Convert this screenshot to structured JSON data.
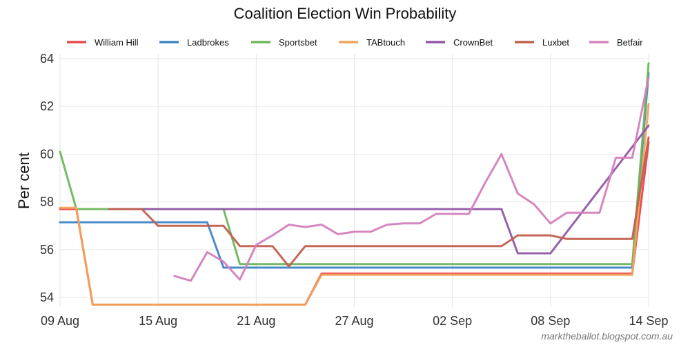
{
  "chart_data": {
    "type": "line",
    "title": "Coalition Election Win Probability",
    "xlabel": "",
    "ylabel": "Per cent",
    "ylim": [
      53.6,
      64.2
    ],
    "xlim": [
      "2016-08-09",
      "2016-09-14"
    ],
    "x_ticks": [
      {
        "date": "2016-08-09",
        "label": "09 Aug"
      },
      {
        "date": "2016-08-15",
        "label": "15 Aug"
      },
      {
        "date": "2016-08-21",
        "label": "21 Aug"
      },
      {
        "date": "2016-08-27",
        "label": "27 Aug"
      },
      {
        "date": "2016-09-02",
        "label": "02 Sep"
      },
      {
        "date": "2016-09-08",
        "label": "08 Sep"
      },
      {
        "date": "2016-09-14",
        "label": "14 Sep"
      }
    ],
    "y_ticks": [
      54,
      56,
      58,
      60,
      62,
      64
    ],
    "grid": true,
    "legend_position": "top",
    "footnote": "marktheballot.blogspot.com.au",
    "series": [
      {
        "name": "William Hill",
        "color": "#e8474c",
        "points": [
          [
            "2016-08-09",
            57.7
          ],
          [
            "2016-08-10",
            57.7
          ],
          [
            "2016-08-11",
            53.7
          ],
          [
            "2016-08-24",
            53.7
          ],
          [
            "2016-08-25",
            55.0
          ],
          [
            "2016-09-13",
            55.0
          ],
          [
            "2016-09-14",
            60.5
          ]
        ]
      },
      {
        "name": "Ladbrokes",
        "color": "#3d85c6",
        "points": [
          [
            "2016-08-09",
            57.15
          ],
          [
            "2016-08-18",
            57.15
          ],
          [
            "2016-08-19",
            55.25
          ],
          [
            "2016-09-13",
            55.25
          ],
          [
            "2016-09-14",
            63.4
          ]
        ]
      },
      {
        "name": "Sportsbet",
        "color": "#6db65b",
        "points": [
          [
            "2016-08-09",
            60.1
          ],
          [
            "2016-08-10",
            57.7
          ],
          [
            "2016-08-19",
            57.7
          ],
          [
            "2016-08-20",
            55.4
          ],
          [
            "2016-09-13",
            55.4
          ],
          [
            "2016-09-14",
            63.8
          ]
        ]
      },
      {
        "name": "TABtouch",
        "color": "#f4a25b",
        "points": [
          [
            "2016-08-09",
            57.75
          ],
          [
            "2016-08-10",
            57.75
          ],
          [
            "2016-08-11",
            53.7
          ],
          [
            "2016-08-24",
            53.7
          ],
          [
            "2016-08-25",
            54.95
          ],
          [
            "2016-09-13",
            54.95
          ],
          [
            "2016-09-14",
            62.1
          ]
        ]
      },
      {
        "name": "CrownBet",
        "color": "#9157a8",
        "points": [
          [
            "2016-08-12",
            57.7
          ],
          [
            "2016-09-05",
            57.7
          ],
          [
            "2016-09-06",
            55.85
          ],
          [
            "2016-09-08",
            55.85
          ],
          [
            "2016-09-14",
            61.2
          ]
        ]
      },
      {
        "name": "Luxbet",
        "color": "#c0604d",
        "points": [
          [
            "2016-08-12",
            57.7
          ],
          [
            "2016-08-14",
            57.7
          ],
          [
            "2016-08-15",
            57.0
          ],
          [
            "2016-08-19",
            57.0
          ],
          [
            "2016-08-20",
            56.15
          ],
          [
            "2016-08-22",
            56.15
          ],
          [
            "2016-08-23",
            55.3
          ],
          [
            "2016-08-24",
            56.15
          ],
          [
            "2016-09-05",
            56.15
          ],
          [
            "2016-09-06",
            56.6
          ],
          [
            "2016-09-08",
            56.6
          ],
          [
            "2016-09-09",
            56.45
          ],
          [
            "2016-09-13",
            56.45
          ],
          [
            "2016-09-14",
            60.7
          ]
        ]
      },
      {
        "name": "Betfair",
        "color": "#d47fbc",
        "points": [
          [
            "2016-08-16",
            54.9
          ],
          [
            "2016-08-17",
            54.7
          ],
          [
            "2016-08-18",
            55.9
          ],
          [
            "2016-08-19",
            55.5
          ],
          [
            "2016-08-20",
            54.75
          ],
          [
            "2016-08-21",
            56.2
          ],
          [
            "2016-08-22",
            56.6
          ],
          [
            "2016-08-23",
            57.05
          ],
          [
            "2016-08-24",
            56.95
          ],
          [
            "2016-08-25",
            57.05
          ],
          [
            "2016-08-26",
            56.65
          ],
          [
            "2016-08-27",
            56.75
          ],
          [
            "2016-08-28",
            56.75
          ],
          [
            "2016-08-29",
            57.05
          ],
          [
            "2016-08-30",
            57.1
          ],
          [
            "2016-08-31",
            57.1
          ],
          [
            "2016-09-01",
            57.5
          ],
          [
            "2016-09-02",
            57.5
          ],
          [
            "2016-09-03",
            57.5
          ],
          [
            "2016-09-04",
            58.8
          ],
          [
            "2016-09-05",
            60.0
          ],
          [
            "2016-09-06",
            58.35
          ],
          [
            "2016-09-07",
            57.9
          ],
          [
            "2016-09-08",
            57.1
          ],
          [
            "2016-09-09",
            57.55
          ],
          [
            "2016-09-10",
            57.55
          ],
          [
            "2016-09-11",
            57.55
          ],
          [
            "2016-09-12",
            59.85
          ],
          [
            "2016-09-13",
            59.85
          ],
          [
            "2016-09-14",
            63.2
          ]
        ]
      }
    ]
  }
}
